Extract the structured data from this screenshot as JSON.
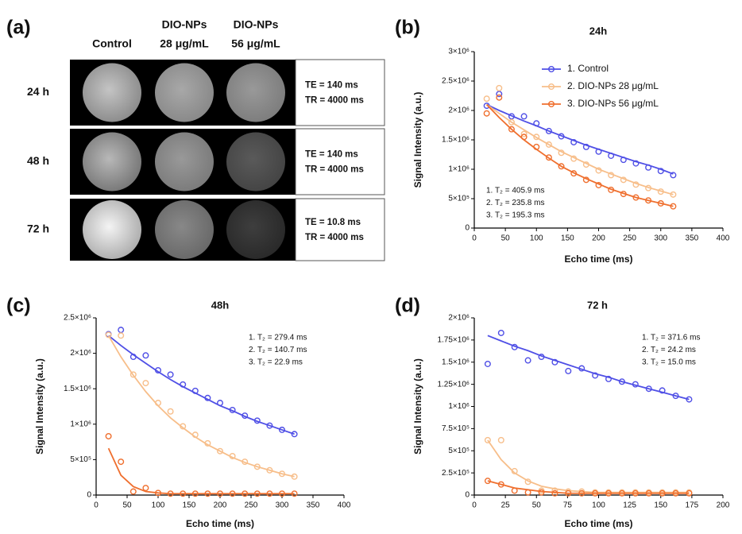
{
  "image_panel": {
    "label": "(a)",
    "columns": [
      [
        "Control"
      ],
      [
        "DIO-NPs",
        "28 μg/mL"
      ],
      [
        "DIO-NPs",
        "56 μg/mL"
      ]
    ],
    "rows": [
      {
        "label": "24 h",
        "params": [
          "TE = 140 ms",
          "TR = 4000 ms"
        ]
      },
      {
        "label": "48 h",
        "params": [
          "TE = 140 ms",
          "TR = 4000 ms"
        ]
      },
      {
        "label": "72 h",
        "params": [
          "TE = 10.8 ms",
          "TR = 4000 ms"
        ]
      }
    ]
  },
  "chart_data": [
    {
      "type": "scatter",
      "label": "(b)",
      "title": "24h",
      "x_label": "Echo time (ms)",
      "y_label": "Signal Intensity (a.u.)",
      "x": [
        20,
        40,
        60,
        80,
        100,
        120,
        140,
        160,
        180,
        200,
        220,
        240,
        260,
        280,
        300,
        320
      ],
      "xlim": [
        0,
        400
      ],
      "xticks": [
        0,
        50,
        100,
        150,
        200,
        250,
        300,
        350,
        400
      ],
      "ylim": [
        0,
        3000000
      ],
      "yticks": [
        0,
        {
          "value": 500000,
          "label": "5×10⁵"
        },
        {
          "value": 1000000,
          "label": "1×10⁶"
        },
        {
          "value": 1500000,
          "label": "1.5×10⁶"
        },
        {
          "value": 2000000,
          "label": "2×10⁶"
        },
        {
          "value": 2500000,
          "label": "2.5×10⁶"
        },
        {
          "value": 3000000,
          "label": "3×10⁶"
        }
      ],
      "legend": "upper right",
      "annotations": [
        "1. T₂ = 405.9 ms",
        "2. T₂ = 235.8 ms",
        "3. T₂ = 195.3 ms"
      ],
      "series": [
        {
          "name": "1. Control",
          "color": "#4f4fe6",
          "values": [
            2080000,
            2280000,
            1900000,
            1900000,
            1780000,
            1650000,
            1560000,
            1460000,
            1380000,
            1300000,
            1230000,
            1160000,
            1100000,
            1030000,
            970000,
            900000
          ],
          "fit": [
            2100000,
            2000000,
            1910000,
            1820000,
            1740000,
            1650000,
            1570000,
            1490000,
            1410000,
            1340000,
            1270000,
            1200000,
            1130000,
            1070000,
            1000000,
            920000
          ]
        },
        {
          "name": "2. DIO-NPs 28 μg/mL",
          "color": "#f7be8a",
          "values": [
            2200000,
            2380000,
            1800000,
            1600000,
            1550000,
            1420000,
            1280000,
            1180000,
            1080000,
            980000,
            900000,
            820000,
            740000,
            680000,
            620000,
            570000
          ],
          "fit": [
            2100000,
            1950000,
            1800000,
            1670000,
            1540000,
            1420000,
            1300000,
            1200000,
            1100000,
            1000000,
            920000,
            840000,
            760000,
            690000,
            630000,
            570000
          ]
        },
        {
          "name": "3. DIO-NPs 56 μg/mL",
          "color": "#ef6f2e",
          "values": [
            1950000,
            2220000,
            1680000,
            1550000,
            1380000,
            1200000,
            1050000,
            930000,
            820000,
            730000,
            650000,
            580000,
            520000,
            470000,
            420000,
            370000
          ],
          "fit": [
            2100000,
            1880000,
            1680000,
            1500000,
            1340000,
            1190000,
            1050000,
            940000,
            840000,
            750000,
            660000,
            590000,
            520000,
            470000,
            420000,
            370000
          ]
        }
      ]
    },
    {
      "type": "scatter",
      "label": "(c)",
      "title": "48h",
      "x_label": "Echo time (ms)",
      "y_label": "Signal Intensity (a.u.)",
      "x": [
        20,
        40,
        60,
        80,
        100,
        120,
        140,
        160,
        180,
        200,
        220,
        240,
        260,
        280,
        300,
        320
      ],
      "xlim": [
        0,
        400
      ],
      "xticks": [
        0,
        50,
        100,
        150,
        200,
        250,
        300,
        350,
        400
      ],
      "ylim": [
        0,
        2500000
      ],
      "yticks": [
        0,
        {
          "value": 500000,
          "label": "5×10⁵"
        },
        {
          "value": 1000000,
          "label": "1×10⁶"
        },
        {
          "value": 1500000,
          "label": "1.5×10⁶"
        },
        {
          "value": 2000000,
          "label": "2×10⁶"
        },
        {
          "value": 2500000,
          "label": "2.5×10⁶"
        }
      ],
      "annotations": [
        "1. T₂ = 279.4 ms",
        "2. T₂ = 140.7 ms",
        "3. T₂ = 22.9 ms"
      ],
      "series": [
        {
          "color": "#4f4fe6",
          "values": [
            2270000,
            2330000,
            1950000,
            1970000,
            1760000,
            1700000,
            1560000,
            1470000,
            1370000,
            1300000,
            1200000,
            1120000,
            1050000,
            980000,
            920000,
            860000
          ],
          "fit": [
            2250000,
            2110000,
            1980000,
            1860000,
            1740000,
            1630000,
            1530000,
            1440000,
            1350000,
            1260000,
            1190000,
            1110000,
            1040000,
            980000,
            920000,
            860000
          ]
        },
        {
          "color": "#f7be8a",
          "values": [
            2260000,
            2250000,
            1700000,
            1580000,
            1300000,
            1180000,
            970000,
            850000,
            730000,
            620000,
            550000,
            470000,
            400000,
            350000,
            300000,
            260000
          ],
          "fit": [
            2250000,
            1950000,
            1690000,
            1460000,
            1260000,
            1090000,
            950000,
            820000,
            710000,
            620000,
            530000,
            460000,
            400000,
            350000,
            300000,
            260000
          ]
        },
        {
          "color": "#ef6f2e",
          "values": [
            830000,
            470000,
            50000,
            100000,
            30000,
            20000,
            20000,
            20000,
            20000,
            20000,
            20000,
            20000,
            20000,
            20000,
            20000,
            20000
          ],
          "fit": [
            660000,
            280000,
            120000,
            50000,
            30000,
            20000,
            20000,
            20000,
            20000,
            20000,
            20000,
            20000,
            20000,
            20000,
            20000,
            20000
          ]
        }
      ]
    },
    {
      "type": "scatter",
      "label": "(d)",
      "title": "72 h",
      "x_label": "Echo time (ms)",
      "y_label": "Signal Intensity (a.u.)",
      "x": [
        10.8,
        21.6,
        32.4,
        43.2,
        54,
        64.8,
        75.6,
        86.4,
        97.2,
        108,
        118.8,
        129.6,
        140.4,
        151.2,
        162,
        172.8
      ],
      "xlim": [
        0,
        200
      ],
      "xticks": [
        0,
        25,
        50,
        75,
        100,
        125,
        150,
        175,
        200
      ],
      "ylim": [
        0,
        2000000
      ],
      "yticks": [
        0,
        {
          "value": 250000,
          "label": "2.5×10⁵"
        },
        {
          "value": 500000,
          "label": "5×10⁵"
        },
        {
          "value": 750000,
          "label": "7.5×10⁵"
        },
        {
          "value": 1000000,
          "label": "1×10⁶"
        },
        {
          "value": 1250000,
          "label": "1.25×10⁶"
        },
        {
          "value": 1500000,
          "label": "1.5×10⁶"
        },
        {
          "value": 1750000,
          "label": "1.75×10⁶"
        },
        {
          "value": 2000000,
          "label": "2×10⁶"
        }
      ],
      "annotations": [
        "1. T₂ = 371.6 ms",
        "2. T₂ = 24.2 ms",
        "3. T₂ = 15.0 ms"
      ],
      "series": [
        {
          "color": "#4f4fe6",
          "values": [
            1480000,
            1830000,
            1670000,
            1520000,
            1560000,
            1500000,
            1400000,
            1430000,
            1350000,
            1310000,
            1280000,
            1250000,
            1200000,
            1180000,
            1120000,
            1080000
          ],
          "fit": [
            1800000,
            1740000,
            1680000,
            1630000,
            1570000,
            1520000,
            1470000,
            1420000,
            1370000,
            1330000,
            1280000,
            1240000,
            1200000,
            1160000,
            1120000,
            1080000
          ]
        },
        {
          "color": "#f7be8a",
          "values": [
            620000,
            620000,
            270000,
            150000,
            50000,
            50000,
            40000,
            40000,
            30000,
            30000,
            30000,
            30000,
            30000,
            30000,
            30000,
            30000
          ],
          "fit": [
            620000,
            400000,
            250000,
            160000,
            100000,
            70000,
            50000,
            40000,
            30000,
            30000,
            30000,
            30000,
            30000,
            30000,
            30000,
            30000
          ]
        },
        {
          "color": "#ef6f2e",
          "values": [
            160000,
            120000,
            50000,
            30000,
            30000,
            20000,
            20000,
            20000,
            20000,
            20000,
            20000,
            20000,
            20000,
            20000,
            20000,
            20000
          ],
          "fit": [
            160000,
            120000,
            80000,
            60000,
            40000,
            30000,
            20000,
            20000,
            20000,
            20000,
            20000,
            20000,
            20000,
            20000,
            20000,
            20000
          ]
        }
      ]
    }
  ]
}
